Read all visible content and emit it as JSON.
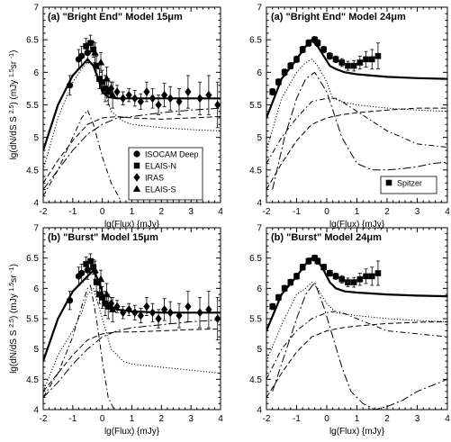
{
  "chart_data": [
    {
      "type": "line",
      "title": "(a) \"Bright End\" Model 15μm",
      "xlabel": "lg(Flux) {mJy}",
      "ylabel": "lg(dN/dS S 2.5) (mJy 1.5 sr -1)",
      "xlim": [
        -2,
        4
      ],
      "ylim": [
        4,
        7
      ],
      "xticks": [
        "-2",
        "-1",
        "0",
        "1",
        "2",
        "3",
        "4"
      ],
      "yticks": [
        "4",
        "4.5",
        "5",
        "5.5",
        "6",
        "6.5",
        "7"
      ],
      "legend": {
        "placement": "lower-right",
        "entries": [
          "ISOCAM Deep",
          "ELAIS-N",
          "IRAS",
          "ELAIS-S"
        ]
      },
      "series": [
        {
          "style": "solid-thick",
          "x": [
            -2,
            -1.5,
            -1,
            -0.7,
            -0.5,
            -0.3,
            -0.1,
            0,
            0.2,
            0.5,
            1,
            2,
            3,
            4
          ],
          "y": [
            4.8,
            5.5,
            5.95,
            6.1,
            6.2,
            6.1,
            5.85,
            5.7,
            5.62,
            5.6,
            5.6,
            5.6,
            5.6,
            5.6
          ]
        },
        {
          "style": "dotted",
          "x": [
            -2,
            -1.5,
            -1,
            -0.7,
            -0.5,
            -0.3,
            0,
            0.3,
            0.7,
            1,
            2,
            3,
            4
          ],
          "y": [
            4.5,
            5.3,
            5.85,
            6.05,
            6.15,
            6.1,
            5.8,
            5.4,
            5.25,
            5.2,
            5.15,
            5.12,
            5.1
          ]
        },
        {
          "style": "dash-dot",
          "x": [
            -2,
            -1.5,
            -1,
            -0.7,
            -0.5,
            -0.3,
            0,
            0.3,
            0.6
          ],
          "y": [
            4.1,
            4.5,
            5.0,
            5.3,
            5.42,
            5.2,
            4.7,
            4.3,
            4.05
          ]
        },
        {
          "style": "dashed",
          "x": [
            -2,
            -1.5,
            -1,
            -0.5,
            0,
            0.5,
            1,
            2,
            3,
            4
          ],
          "y": [
            4.3,
            4.65,
            4.95,
            5.2,
            5.3,
            5.32,
            5.3,
            5.28,
            5.3,
            5.32
          ]
        },
        {
          "style": "long-dash-dot",
          "x": [
            -2,
            -1.5,
            -1,
            -0.5,
            0,
            0.5,
            1,
            2,
            3,
            4
          ],
          "y": [
            4.2,
            4.5,
            4.8,
            5.05,
            5.2,
            5.3,
            5.32,
            5.38,
            5.42,
            5.45
          ]
        }
      ],
      "observations": [
        {
          "dataset": "ISOCAM Deep",
          "x": [
            -1.1,
            -0.8,
            -0.7,
            -0.5
          ],
          "y": [
            5.8,
            6.2,
            6.25,
            6.3
          ],
          "err": [
            0.15,
            0.15,
            0.15,
            0.15
          ]
        },
        {
          "dataset": "ELAIS-N",
          "x": [
            -0.55,
            -0.4,
            -0.3,
            -0.2,
            -0.1,
            0.0,
            0.1,
            0.2
          ],
          "y": [
            6.4,
            6.45,
            6.35,
            6.1,
            5.9,
            5.85,
            5.75,
            5.7
          ],
          "err": [
            0.12,
            0.12,
            0.12,
            0.15,
            0.15,
            0.18,
            0.2,
            0.2
          ]
        },
        {
          "dataset": "IRAS",
          "x": [
            0.3,
            0.5,
            0.7,
            0.9,
            1.1,
            1.3,
            1.5,
            1.7,
            1.9,
            2.1,
            2.3,
            2.6,
            2.9,
            3.3,
            3.6,
            3.9
          ],
          "y": [
            5.75,
            5.7,
            5.6,
            5.65,
            5.6,
            5.55,
            5.7,
            5.6,
            5.5,
            5.65,
            5.6,
            5.55,
            5.7,
            5.6,
            5.65,
            5.5
          ],
          "err": [
            0.1,
            0.1,
            0.1,
            0.1,
            0.12,
            0.12,
            0.15,
            0.15,
            0.15,
            0.18,
            0.18,
            0.2,
            0.25,
            0.25,
            0.3,
            0.35
          ]
        },
        {
          "dataset": "ELAIS-S",
          "x": [
            -0.25,
            -0.05,
            0.15,
            0.35
          ],
          "y": [
            6.3,
            6.15,
            5.9,
            5.65
          ],
          "err": [
            0.15,
            0.15,
            0.18,
            0.2
          ]
        }
      ]
    },
    {
      "type": "line",
      "title": "(a) \"Bright End\" Model 24μm",
      "xlabel": "lg(Flux) {mJy}",
      "ylabel": "",
      "xlim": [
        -2,
        4
      ],
      "ylim": [
        4,
        7
      ],
      "xticks": [
        "-2",
        "-1",
        "0",
        "1",
        "2",
        "3",
        "4"
      ],
      "yticks": [
        "4",
        "4.5",
        "5",
        "5.5",
        "6",
        "6.5",
        "7"
      ],
      "legend": {
        "placement": "lower-right",
        "entries": [
          "Spitzer"
        ]
      },
      "series": [
        {
          "style": "solid-thick",
          "x": [
            -2,
            -1.5,
            -1,
            -0.7,
            -0.5,
            -0.3,
            -0.1,
            0.1,
            0.3,
            0.6,
            1,
            2,
            3,
            4
          ],
          "y": [
            5.3,
            5.9,
            6.2,
            6.4,
            6.5,
            6.4,
            6.25,
            6.1,
            6.05,
            6.0,
            5.97,
            5.93,
            5.91,
            5.9
          ]
        },
        {
          "style": "dotted",
          "x": [
            -2,
            -1.5,
            -1,
            -0.7,
            -0.5,
            -0.3,
            0,
            0.2,
            0.5,
            1,
            2,
            3,
            4
          ],
          "y": [
            4.8,
            5.6,
            6.0,
            6.15,
            6.2,
            6.1,
            5.85,
            5.6,
            5.55,
            5.5,
            5.45,
            5.42,
            5.4
          ]
        },
        {
          "style": "dash-dot",
          "x": [
            -2,
            -1.5,
            -1,
            -0.5,
            0,
            0.3,
            0.5,
            1,
            2,
            3,
            4
          ],
          "y": [
            4.6,
            5.0,
            5.3,
            5.55,
            5.6,
            5.6,
            5.55,
            5.4,
            5.1,
            4.9,
            4.85
          ]
        },
        {
          "style": "dashed",
          "x": [
            -2,
            -1.5,
            -1,
            -0.5,
            0,
            0.5,
            1,
            2,
            3,
            4
          ],
          "y": [
            4.2,
            4.6,
            4.95,
            5.2,
            5.3,
            5.35,
            5.38,
            5.42,
            5.45,
            5.45
          ]
        },
        {
          "style": "long-dash-dot",
          "x": [
            -1.8,
            -1.4,
            -1,
            -0.7,
            -0.4,
            0,
            0.5,
            1,
            1.5,
            2,
            2.5,
            3,
            3.5,
            4
          ],
          "y": [
            4.2,
            5.0,
            5.6,
            5.9,
            6.0,
            5.7,
            5.0,
            4.6,
            4.5,
            4.5,
            4.52,
            4.55,
            4.6,
            4.62
          ]
        }
      ],
      "observations": [
        {
          "dataset": "Spitzer",
          "x": [
            -1.8,
            -1.6,
            -1.4,
            -1.2,
            -1.0,
            -0.8,
            -0.6,
            -0.4,
            -0.3,
            -0.1,
            0.1,
            0.3,
            0.5,
            0.7,
            0.9,
            1.1,
            1.3,
            1.5,
            1.7
          ],
          "y": [
            5.7,
            5.85,
            6.0,
            6.1,
            6.2,
            6.35,
            6.45,
            6.5,
            6.45,
            6.35,
            6.25,
            6.2,
            6.15,
            6.1,
            6.1,
            6.15,
            6.2,
            6.2,
            6.25
          ],
          "err": [
            0.05,
            0.05,
            0.05,
            0.05,
            0.05,
            0.05,
            0.05,
            0.05,
            0.05,
            0.05,
            0.05,
            0.05,
            0.06,
            0.07,
            0.08,
            0.1,
            0.12,
            0.15,
            0.2
          ]
        }
      ]
    },
    {
      "type": "line",
      "title": "(b) \"Burst\" Model 15μm",
      "xlabel": "lg(Flux) {mJy}",
      "ylabel": "lg(dN/dS S 2.5) (mJy 1.5 sr -1)",
      "xlim": [
        -2,
        4
      ],
      "ylim": [
        4,
        7
      ],
      "xticks": [
        "-2",
        "-1",
        "0",
        "1",
        "2",
        "3",
        "4"
      ],
      "yticks": [
        "4",
        "4.5",
        "5",
        "5.5",
        "6",
        "6.5",
        "7"
      ],
      "series": [
        {
          "style": "solid-thick",
          "x": [
            -2,
            -1.5,
            -1,
            -0.7,
            -0.5,
            -0.3,
            -0.1,
            0.1,
            0.5,
            1,
            2,
            3,
            4
          ],
          "y": [
            4.8,
            5.5,
            5.95,
            6.1,
            6.2,
            6.3,
            6.1,
            5.75,
            5.65,
            5.62,
            5.6,
            5.6,
            5.6
          ]
        },
        {
          "style": "dotted",
          "x": [
            -2,
            -1.5,
            -1,
            -0.7,
            -0.5,
            -0.3,
            0,
            0.3,
            0.7,
            1,
            2,
            3,
            4
          ],
          "y": [
            4.3,
            4.9,
            5.3,
            5.6,
            5.9,
            6.0,
            5.5,
            5.0,
            4.8,
            4.75,
            4.7,
            4.65,
            4.6
          ]
        },
        {
          "style": "dash-dot",
          "x": [
            -2,
            -1.5,
            -1,
            -0.7,
            -0.5,
            -0.4,
            -0.2,
            0,
            0.2,
            0.4
          ],
          "y": [
            4.2,
            4.6,
            5.2,
            5.7,
            6.0,
            6.05,
            5.5,
            4.8,
            4.2,
            4.0
          ]
        },
        {
          "style": "dashed",
          "x": [
            -2,
            -1.5,
            -1,
            -0.5,
            0,
            0.5,
            1,
            2,
            3,
            4
          ],
          "y": [
            4.3,
            4.6,
            4.9,
            5.15,
            5.25,
            5.28,
            5.28,
            5.3,
            5.32,
            5.33
          ]
        },
        {
          "style": "long-dash-dot",
          "x": [
            -2,
            -1.5,
            -1,
            -0.5,
            0,
            0.5,
            1,
            2,
            3,
            4
          ],
          "y": [
            4.2,
            4.45,
            4.75,
            5.0,
            5.2,
            5.3,
            5.35,
            5.4,
            5.45,
            5.48
          ]
        }
      ],
      "observations": [
        {
          "dataset": "ISOCAM Deep",
          "x": [
            -1.1,
            -0.8,
            -0.7,
            -0.5
          ],
          "y": [
            5.8,
            6.2,
            6.25,
            6.3
          ],
          "err": [
            0.15,
            0.15,
            0.15,
            0.15
          ]
        },
        {
          "dataset": "ELAIS-N",
          "x": [
            -0.55,
            -0.4,
            -0.3,
            -0.2,
            -0.1,
            0.0,
            0.1,
            0.2
          ],
          "y": [
            6.4,
            6.45,
            6.35,
            6.1,
            5.9,
            5.85,
            5.75,
            5.7
          ],
          "err": [
            0.12,
            0.12,
            0.12,
            0.15,
            0.15,
            0.18,
            0.2,
            0.2
          ]
        },
        {
          "dataset": "IRAS",
          "x": [
            0.3,
            0.5,
            0.7,
            0.9,
            1.1,
            1.3,
            1.5,
            1.7,
            1.9,
            2.1,
            2.3,
            2.6,
            2.9,
            3.3,
            3.6,
            3.9
          ],
          "y": [
            5.75,
            5.7,
            5.6,
            5.65,
            5.6,
            5.55,
            5.7,
            5.6,
            5.5,
            5.65,
            5.6,
            5.55,
            5.7,
            5.6,
            5.65,
            5.5
          ],
          "err": [
            0.1,
            0.1,
            0.1,
            0.1,
            0.12,
            0.12,
            0.15,
            0.15,
            0.15,
            0.18,
            0.18,
            0.2,
            0.25,
            0.25,
            0.3,
            0.35
          ]
        },
        {
          "dataset": "ELAIS-S",
          "x": [
            -0.25,
            -0.05,
            0.15,
            0.35
          ],
          "y": [
            6.3,
            6.15,
            5.9,
            5.65
          ],
          "err": [
            0.15,
            0.15,
            0.18,
            0.2
          ]
        }
      ]
    },
    {
      "type": "line",
      "title": "(b) \"Burst\" Model 24μm",
      "xlabel": "lg(Flux) {mJy}",
      "ylabel": "",
      "xlim": [
        -2,
        4
      ],
      "ylim": [
        4,
        7
      ],
      "xticks": [
        "-2",
        "-1",
        "0",
        "1",
        "2",
        "3",
        "4"
      ],
      "yticks": [
        "4",
        "4.5",
        "5",
        "5.5",
        "6",
        "6.5",
        "7"
      ],
      "series": [
        {
          "style": "solid-thick",
          "x": [
            -2,
            -1.5,
            -1,
            -0.7,
            -0.5,
            -0.3,
            -0.1,
            0.1,
            0.3,
            0.6,
            1,
            2,
            3,
            4
          ],
          "y": [
            5.3,
            5.9,
            6.2,
            6.4,
            6.5,
            6.45,
            6.3,
            6.1,
            6.0,
            5.95,
            5.93,
            5.9,
            5.88,
            5.87
          ]
        },
        {
          "style": "dotted",
          "x": [
            -2,
            -1.5,
            -1,
            -0.7,
            -0.5,
            -0.3,
            0,
            0.3,
            0.6,
            1,
            2,
            3,
            4
          ],
          "y": [
            4.8,
            5.4,
            5.9,
            6.0,
            6.1,
            6.0,
            5.75,
            5.6,
            5.58,
            5.55,
            5.5,
            5.47,
            5.45
          ]
        },
        {
          "style": "dash-dot",
          "x": [
            -2,
            -1.5,
            -1,
            -0.5,
            0,
            0.3,
            0.5,
            1,
            2,
            3,
            4
          ],
          "y": [
            4.5,
            5.0,
            5.3,
            5.5,
            5.6,
            5.62,
            5.6,
            5.5,
            5.3,
            5.25,
            5.2
          ]
        },
        {
          "style": "dashed",
          "x": [
            -2,
            -1.5,
            -1,
            -0.5,
            0,
            0.5,
            1,
            2,
            3,
            4
          ],
          "y": [
            4.2,
            4.6,
            4.95,
            5.2,
            5.3,
            5.35,
            5.38,
            5.42,
            5.44,
            5.45
          ]
        },
        {
          "style": "long-dash-dot",
          "x": [
            -1.8,
            -1.4,
            -1,
            -0.7,
            -0.4,
            -0.1,
            0.2,
            0.5,
            0.8,
            1.2,
            1.6,
            2,
            2.5,
            3,
            3.5,
            4
          ],
          "y": [
            4.3,
            4.9,
            5.5,
            5.9,
            6.1,
            5.7,
            5.2,
            4.7,
            4.3,
            4.1,
            4.0,
            4.05,
            4.15,
            4.3,
            4.4,
            4.5
          ]
        }
      ],
      "observations": [
        {
          "dataset": "Spitzer",
          "x": [
            -1.8,
            -1.6,
            -1.4,
            -1.2,
            -1.0,
            -0.8,
            -0.6,
            -0.4,
            -0.3,
            -0.1,
            0.1,
            0.3,
            0.5,
            0.7,
            0.9,
            1.1,
            1.3,
            1.5,
            1.7
          ],
          "y": [
            5.7,
            5.85,
            6.0,
            6.1,
            6.2,
            6.35,
            6.45,
            6.5,
            6.45,
            6.35,
            6.25,
            6.2,
            6.15,
            6.1,
            6.1,
            6.15,
            6.2,
            6.2,
            6.25
          ],
          "err": [
            0.05,
            0.05,
            0.05,
            0.05,
            0.05,
            0.05,
            0.05,
            0.05,
            0.05,
            0.05,
            0.05,
            0.05,
            0.06,
            0.07,
            0.08,
            0.1,
            0.12,
            0.15,
            0.2
          ]
        }
      ]
    }
  ]
}
